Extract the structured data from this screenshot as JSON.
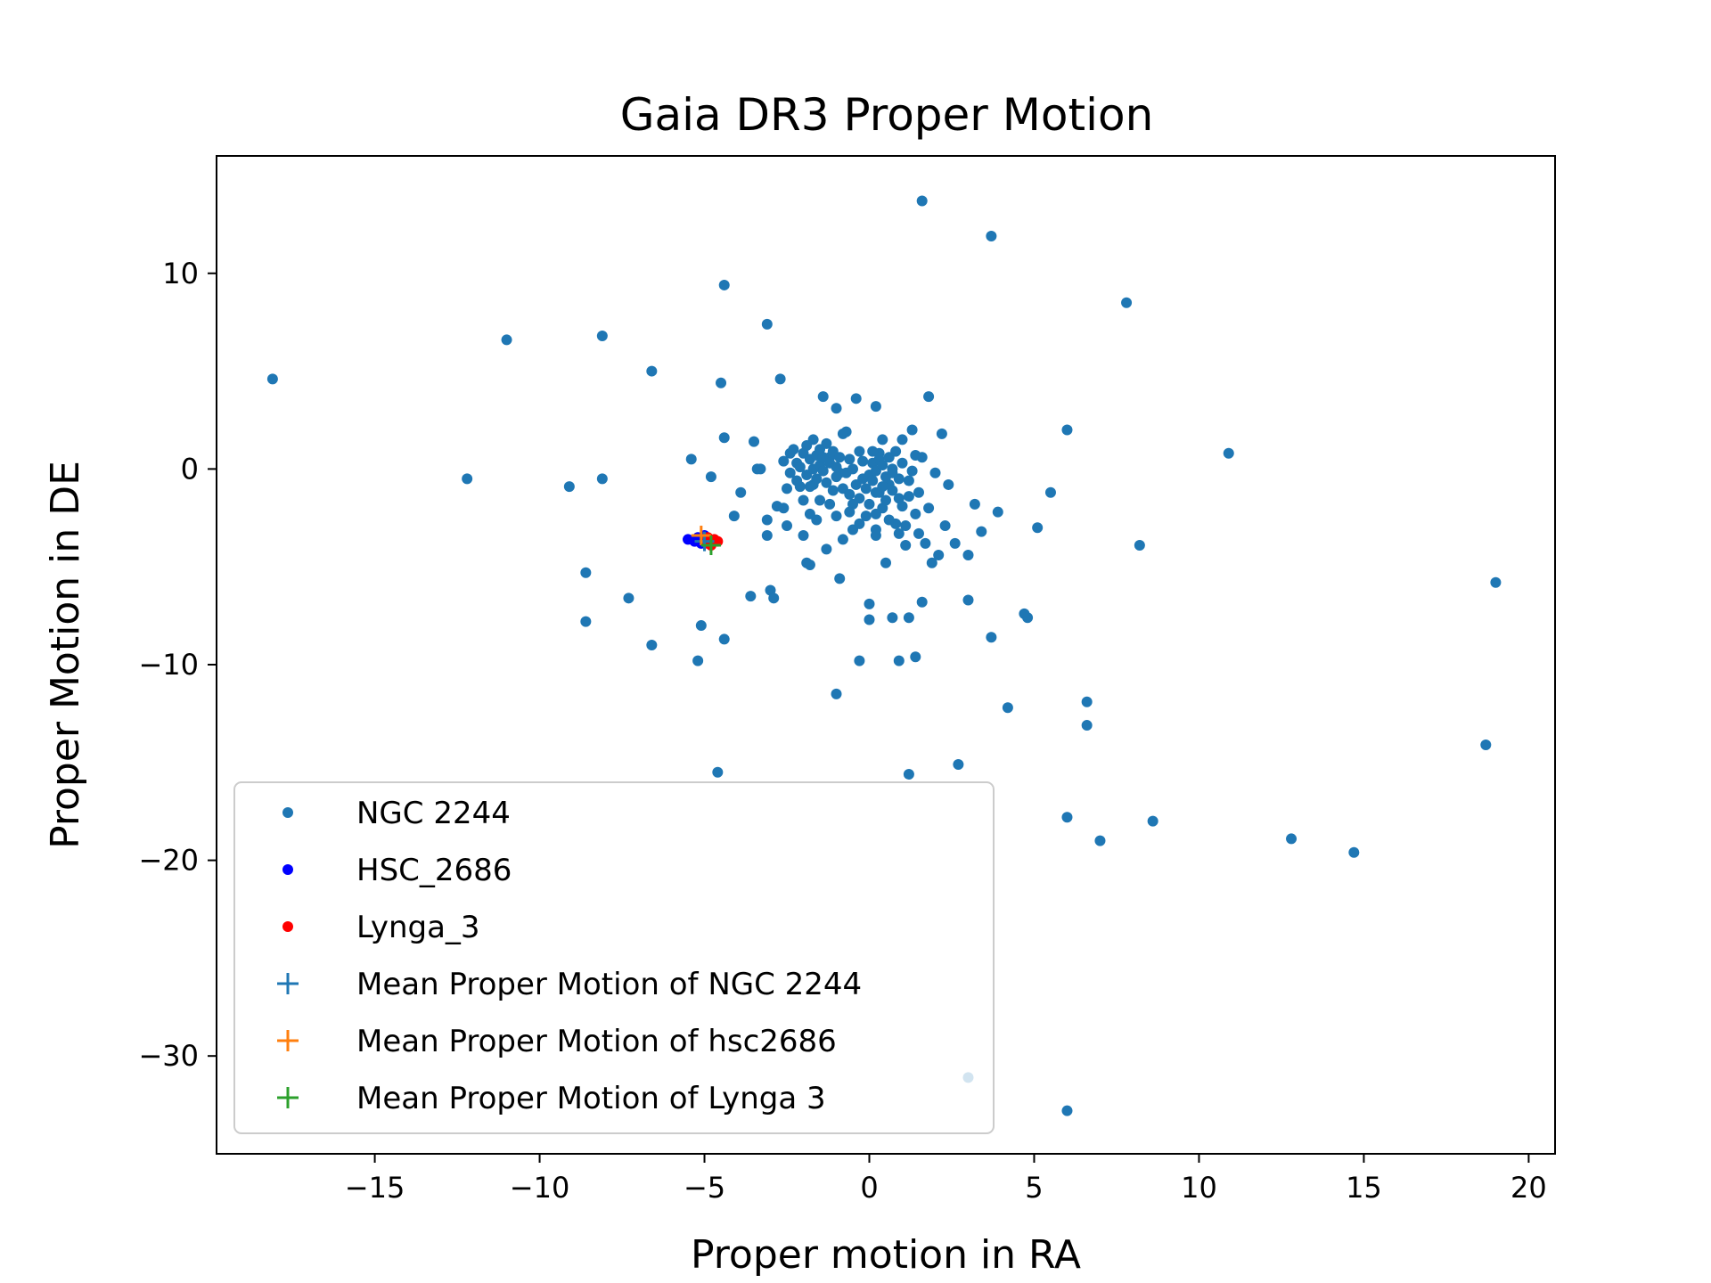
{
  "chart_data": {
    "type": "scatter",
    "title": "Gaia DR3 Proper Motion",
    "xlabel": "Proper motion in RA",
    "ylabel": "Proper Motion in DE",
    "xlim": [
      -19.8,
      20.8
    ],
    "ylim": [
      -35,
      16
    ],
    "xticks": [
      -15,
      -10,
      -5,
      0,
      5,
      10,
      15,
      20
    ],
    "yticks": [
      -30,
      -20,
      -10,
      0,
      10
    ],
    "xtick_labels": [
      "−15",
      "−10",
      "−5",
      "0",
      "5",
      "10",
      "15",
      "20"
    ],
    "ytick_labels": [
      "−30",
      "−20",
      "−10",
      "0",
      "10"
    ],
    "grid": false,
    "legend_position": "lower-left",
    "series": [
      {
        "name": "NGC 2244",
        "color": "#1f77b4",
        "marker": "dot",
        "points": [
          [
            -18.1,
            4.6
          ],
          [
            -12.2,
            -0.5
          ],
          [
            -11.0,
            6.6
          ],
          [
            -9.1,
            -0.9
          ],
          [
            -8.1,
            6.8
          ],
          [
            -8.1,
            -0.5
          ],
          [
            -8.6,
            -5.3
          ],
          [
            -8.6,
            -7.8
          ],
          [
            -7.3,
            -6.6
          ],
          [
            -6.6,
            5.0
          ],
          [
            -6.6,
            -9.0
          ],
          [
            -5.4,
            0.5
          ],
          [
            -5.2,
            -9.8
          ],
          [
            -5.1,
            -8.0
          ],
          [
            -4.8,
            -0.4
          ],
          [
            -4.5,
            4.4
          ],
          [
            -4.4,
            9.4
          ],
          [
            -4.4,
            1.6
          ],
          [
            -4.4,
            -8.7
          ],
          [
            -4.6,
            -15.5
          ],
          [
            -4.1,
            -2.4
          ],
          [
            -3.9,
            -1.2
          ],
          [
            -3.6,
            -6.5
          ],
          [
            -3.5,
            1.4
          ],
          [
            -3.4,
            0.0
          ],
          [
            -3.3,
            0.0
          ],
          [
            -3.1,
            7.4
          ],
          [
            -3.1,
            -2.6
          ],
          [
            -3.1,
            -3.4
          ],
          [
            -3.0,
            -6.2
          ],
          [
            -2.9,
            -6.6
          ],
          [
            -2.8,
            -1.9
          ],
          [
            -2.7,
            4.6
          ],
          [
            -2.6,
            -2.0
          ],
          [
            -2.5,
            -2.9
          ],
          [
            -2.4,
            0.8
          ],
          [
            -2.2,
            0.3
          ],
          [
            -2.1,
            -0.9
          ],
          [
            -2.0,
            -3.4
          ],
          [
            -1.9,
            -4.8
          ],
          [
            -1.8,
            -2.3
          ],
          [
            -1.8,
            -4.9
          ],
          [
            -1.7,
            -0.8
          ],
          [
            -1.6,
            -2.6
          ],
          [
            -1.5,
            -1.6
          ],
          [
            -1.4,
            3.7
          ],
          [
            -1.3,
            -4.1
          ],
          [
            -1.2,
            0.6
          ],
          [
            -1.1,
            -1.1
          ],
          [
            -1.0,
            3.1
          ],
          [
            -1.0,
            -2.4
          ],
          [
            -0.9,
            -5.6
          ],
          [
            -0.9,
            -0.2
          ],
          [
            -0.8,
            -3.6
          ],
          [
            -0.7,
            1.9
          ],
          [
            -0.6,
            0.5
          ],
          [
            -0.5,
            -1.8
          ],
          [
            -0.5,
            -3.1
          ],
          [
            -0.4,
            3.6
          ],
          [
            -0.3,
            0.9
          ],
          [
            -0.3,
            -9.8
          ],
          [
            -0.2,
            -0.5
          ],
          [
            -0.1,
            -2.4
          ],
          [
            0.0,
            -7.7
          ],
          [
            0.0,
            -6.9
          ],
          [
            0.1,
            0.3
          ],
          [
            0.2,
            -1.2
          ],
          [
            0.2,
            -3.4
          ],
          [
            0.2,
            3.2
          ],
          [
            0.3,
            0.8
          ],
          [
            0.4,
            -2.0
          ],
          [
            0.5,
            -4.8
          ],
          [
            0.6,
            -0.8
          ],
          [
            0.7,
            -7.6
          ],
          [
            0.7,
            0.0
          ],
          [
            0.8,
            -2.8
          ],
          [
            0.9,
            -1.5
          ],
          [
            0.9,
            -9.8
          ],
          [
            1.0,
            1.5
          ],
          [
            1.1,
            -3.9
          ],
          [
            1.2,
            -0.6
          ],
          [
            1.2,
            -7.6
          ],
          [
            1.3,
            2.0
          ],
          [
            1.4,
            -2.3
          ],
          [
            1.4,
            -9.6
          ],
          [
            1.5,
            -1.2
          ],
          [
            1.5,
            -3.3
          ],
          [
            1.6,
            -6.8
          ],
          [
            1.6,
            13.7
          ],
          [
            1.6,
            0.6
          ],
          [
            1.7,
            -3.8
          ],
          [
            1.8,
            3.7
          ],
          [
            1.8,
            -2.0
          ],
          [
            1.9,
            -4.8
          ],
          [
            2.0,
            -0.2
          ],
          [
            2.1,
            -4.4
          ],
          [
            2.2,
            1.8
          ],
          [
            2.3,
            -2.9
          ],
          [
            2.4,
            -0.8
          ],
          [
            2.6,
            -3.8
          ],
          [
            2.7,
            -15.1
          ],
          [
            3.0,
            -4.4
          ],
          [
            3.0,
            -6.7
          ],
          [
            3.2,
            -1.8
          ],
          [
            3.4,
            -3.2
          ],
          [
            3.7,
            11.9
          ],
          [
            3.7,
            -8.6
          ],
          [
            3.9,
            -2.2
          ],
          [
            4.2,
            -12.2
          ],
          [
            4.7,
            -7.4
          ],
          [
            4.8,
            -7.6
          ],
          [
            5.1,
            -3.0
          ],
          [
            5.5,
            -1.2
          ],
          [
            6.0,
            -17.8
          ],
          [
            6.0,
            2.0
          ],
          [
            6.0,
            -32.8
          ],
          [
            6.6,
            -11.9
          ],
          [
            6.6,
            -13.1
          ],
          [
            7.0,
            -19.0
          ],
          [
            7.8,
            8.5
          ],
          [
            8.2,
            -3.9
          ],
          [
            8.6,
            -18.0
          ],
          [
            10.9,
            0.8
          ],
          [
            12.8,
            -18.9
          ],
          [
            14.7,
            -19.6
          ],
          [
            18.7,
            -14.1
          ],
          [
            19.0,
            -5.8
          ],
          [
            3.0,
            -31.1
          ],
          [
            1.2,
            -15.6
          ],
          [
            -1.0,
            -11.5
          ]
        ],
        "cluster_points": [
          [
            -2.6,
            0.4
          ],
          [
            -2.4,
            -0.2
          ],
          [
            -2.3,
            1.0
          ],
          [
            -2.2,
            -0.6
          ],
          [
            -2.1,
            0.1
          ],
          [
            -2.0,
            0.8
          ],
          [
            -1.9,
            -0.3
          ],
          [
            -1.9,
            1.2
          ],
          [
            -1.8,
            0.5
          ],
          [
            -1.8,
            -0.9
          ],
          [
            -1.7,
            0.0
          ],
          [
            -1.7,
            1.5
          ],
          [
            -1.6,
            0.7
          ],
          [
            -1.6,
            -0.5
          ],
          [
            -1.5,
            0.2
          ],
          [
            -1.5,
            1.0
          ],
          [
            -1.4,
            -0.1
          ],
          [
            -1.4,
            0.6
          ],
          [
            -1.3,
            1.3
          ],
          [
            -1.3,
            -0.7
          ],
          [
            -1.2,
            0.3
          ],
          [
            -1.1,
            0.9
          ],
          [
            -1.0,
            -0.4
          ],
          [
            -1.0,
            0.1
          ],
          [
            -0.9,
            0.6
          ],
          [
            -0.8,
            -1.0
          ],
          [
            -0.7,
            -0.2
          ],
          [
            -0.6,
            -1.3
          ],
          [
            -0.5,
            0.0
          ],
          [
            -0.4,
            -0.8
          ],
          [
            -0.3,
            -1.5
          ],
          [
            -0.2,
            0.4
          ],
          [
            -0.1,
            -1.0
          ],
          [
            0.0,
            -0.3
          ],
          [
            0.0,
            -1.8
          ],
          [
            0.1,
            -0.6
          ],
          [
            0.1,
            0.9
          ],
          [
            0.2,
            -2.3
          ],
          [
            0.2,
            -0.1
          ],
          [
            0.3,
            -1.2
          ],
          [
            0.3,
            0.5
          ],
          [
            0.4,
            -0.9
          ],
          [
            0.4,
            0.2
          ],
          [
            0.5,
            -1.6
          ],
          [
            0.5,
            -0.4
          ],
          [
            0.6,
            0.6
          ],
          [
            0.6,
            -2.6
          ],
          [
            0.7,
            -1.1
          ],
          [
            0.7,
            -0.2
          ],
          [
            0.8,
            0.9
          ],
          [
            0.9,
            -0.5
          ],
          [
            1.0,
            -1.9
          ],
          [
            1.0,
            0.3
          ],
          [
            1.1,
            -2.9
          ],
          [
            1.2,
            -1.4
          ],
          [
            1.3,
            -0.1
          ],
          [
            1.4,
            0.7
          ],
          [
            -0.3,
            -2.8
          ],
          [
            0.2,
            -3.1
          ],
          [
            -0.6,
            -2.2
          ],
          [
            -1.2,
            -1.8
          ],
          [
            -2.0,
            -1.6
          ],
          [
            -2.5,
            -1.0
          ],
          [
            -0.8,
            1.8
          ],
          [
            0.4,
            1.5
          ],
          [
            0.9,
            -3.3
          ]
        ]
      },
      {
        "name": "HSC_2686",
        "color": "#0000ff",
        "marker": "dot",
        "points": [
          [
            -5.5,
            -3.6
          ],
          [
            -5.3,
            -3.7
          ],
          [
            -5.2,
            -3.5
          ],
          [
            -5.1,
            -3.8
          ],
          [
            -5.0,
            -3.4
          ],
          [
            -5.1,
            -3.6
          ]
        ]
      },
      {
        "name": "Lynga_3",
        "color": "#ff0000",
        "marker": "dot",
        "points": [
          [
            -4.9,
            -3.8
          ],
          [
            -4.7,
            -3.6
          ],
          [
            -4.8,
            -3.9
          ],
          [
            -4.6,
            -3.7
          ],
          [
            -4.9,
            -3.5
          ]
        ]
      },
      {
        "name": "Mean Proper Motion of NGC 2244",
        "color": "#1f77b4",
        "marker": "plus",
        "points": [
          [
            -5.0,
            -3.7
          ]
        ]
      },
      {
        "name": "Mean Proper Motion of hsc2686",
        "color": "#ff7f0e",
        "marker": "plus",
        "points": [
          [
            -5.1,
            -3.4
          ]
        ]
      },
      {
        "name": "Mean Proper Motion of Lynga 3",
        "color": "#2ca02c",
        "marker": "plus",
        "points": [
          [
            -4.8,
            -3.9
          ]
        ]
      }
    ]
  }
}
